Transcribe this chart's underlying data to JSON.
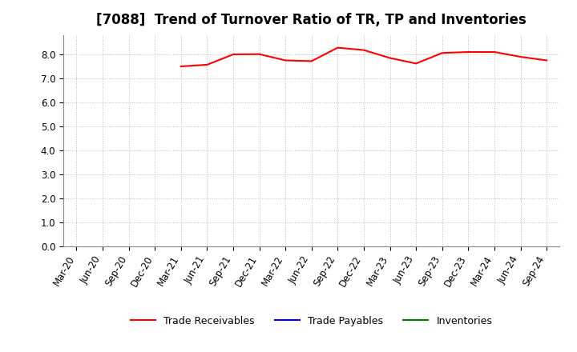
{
  "title": "[7088]  Trend of Turnover Ratio of TR, TP and Inventories",
  "ylim": [
    0.0,
    8.8
  ],
  "yticks": [
    0.0,
    1.0,
    2.0,
    3.0,
    4.0,
    5.0,
    6.0,
    7.0,
    8.0
  ],
  "x_labels": [
    "Mar-20",
    "Jun-20",
    "Sep-20",
    "Dec-20",
    "Mar-21",
    "Jun-21",
    "Sep-21",
    "Dec-21",
    "Mar-22",
    "Jun-22",
    "Sep-22",
    "Dec-22",
    "Mar-23",
    "Jun-23",
    "Sep-23",
    "Dec-23",
    "Mar-24",
    "Jun-24",
    "Sep-24"
  ],
  "trade_receivables": [
    null,
    null,
    null,
    null,
    7.5,
    7.57,
    8.0,
    8.01,
    7.75,
    7.72,
    8.28,
    8.18,
    7.85,
    7.62,
    8.06,
    8.1,
    8.1,
    7.9,
    7.75
  ],
  "trade_payables": [
    null,
    null,
    null,
    null,
    null,
    null,
    null,
    null,
    null,
    null,
    null,
    null,
    null,
    null,
    null,
    null,
    null,
    null,
    null
  ],
  "inventories": [
    null,
    null,
    null,
    null,
    null,
    null,
    null,
    null,
    null,
    null,
    null,
    null,
    null,
    null,
    null,
    null,
    null,
    null,
    null
  ],
  "tr_color": "#FF0000",
  "tp_color": "#0000FF",
  "inv_color": "#008000",
  "line_width": 1.5,
  "background_color": "#FFFFFF",
  "grid_color": "#BBBBBB",
  "title_fontsize": 12,
  "tick_fontsize": 8.5,
  "legend_labels": [
    "Trade Receivables",
    "Trade Payables",
    "Inventories"
  ],
  "legend_fontsize": 9
}
